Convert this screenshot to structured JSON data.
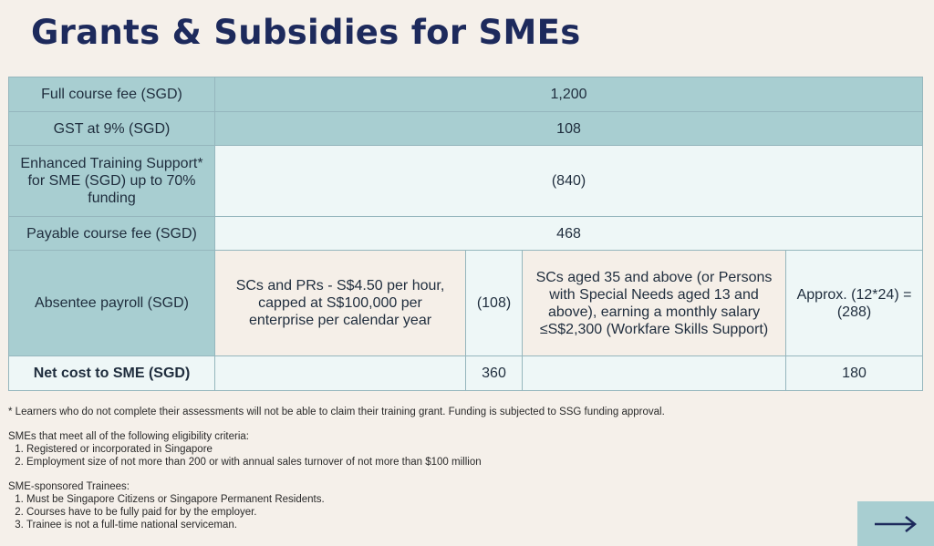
{
  "title": "Grants & Subsidies for SMEs",
  "rows": {
    "full_fee": {
      "label": "Full course fee (SGD)",
      "value": "1,200"
    },
    "gst": {
      "label": "GST at 9% (SGD)",
      "value": "108"
    },
    "ets": {
      "label": "Enhanced Training Support* for SME (SGD) up to 70% funding",
      "value": "(840)"
    },
    "payable": {
      "label": "Payable course fee (SGD)",
      "value": "468"
    },
    "absentee": {
      "label": "Absentee payroll (SGD)",
      "scheme_a": "SCs and PRs - S$4.50 per hour, capped at S$100,000 per enterprise per calendar year",
      "amount_a": "(108)",
      "scheme_b": "SCs aged 35 and above (or Persons with Special Needs aged 13 and above), earning a monthly salary ≤S$2,300 (Workfare Skills Support)",
      "amount_b": "Approx. (12*24) = (288)"
    },
    "net": {
      "label": "Net cost to SME (SGD)",
      "value_a": "360",
      "value_b": "180"
    }
  },
  "footnote": "* Learners who do not complete their assessments will not be able to claim their training grant. Funding is subjected to SSG funding approval.",
  "eligibility": {
    "heading": "SMEs that meet all of the following eligibility criteria:",
    "items": [
      "Registered or incorporated in Singapore",
      "Employment size of not more than 200 or with annual sales turnover of not more than $100 million"
    ]
  },
  "trainees": {
    "heading": "SME-sponsored Trainees:",
    "items": [
      "Must be Singapore Citizens or Singapore Permanent Residents.",
      "Courses have to be fully paid for by the employer.",
      "Trainee is not a full-time national serviceman."
    ]
  },
  "next_icon": "arrow-right-icon",
  "colors": {
    "title": "#1d2a5c",
    "teal": "#a8ced1",
    "light": "#eef7f7",
    "beige": "#f5efe8"
  }
}
